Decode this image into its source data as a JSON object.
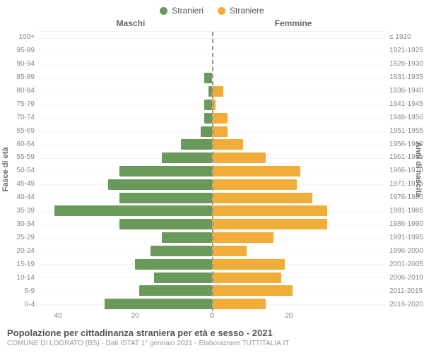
{
  "legend": {
    "male": {
      "label": "Stranieri",
      "color": "#6a9a5b"
    },
    "female": {
      "label": "Straniere",
      "color": "#f0ad3a"
    }
  },
  "headers": {
    "left": "Maschi",
    "right": "Femmine"
  },
  "axis_labels": {
    "left": "Fasce di età",
    "right": "Anni di nascita"
  },
  "colors": {
    "male_bar": "#6a9a5b",
    "female_bar": "#f0ad3a",
    "grid": "#f5f5f5",
    "center_line": "#999999",
    "tick_text": "#888888",
    "title_text": "#555555",
    "subtitle_text": "#999999",
    "background": "#ffffff"
  },
  "x_axis": {
    "max": 45,
    "ticks_left": [
      40,
      20,
      0
    ],
    "ticks_right": [
      0,
      20
    ]
  },
  "age_groups": [
    {
      "age": "100+",
      "birth": "≤ 1920",
      "m": 0,
      "f": 0
    },
    {
      "age": "95-99",
      "birth": "1921-1925",
      "m": 0,
      "f": 0
    },
    {
      "age": "90-94",
      "birth": "1926-1930",
      "m": 0,
      "f": 0
    },
    {
      "age": "85-89",
      "birth": "1931-1935",
      "m": 2,
      "f": 0
    },
    {
      "age": "80-84",
      "birth": "1936-1940",
      "m": 1,
      "f": 3
    },
    {
      "age": "75-79",
      "birth": "1941-1945",
      "m": 2,
      "f": 1
    },
    {
      "age": "70-74",
      "birth": "1946-1950",
      "m": 2,
      "f": 4
    },
    {
      "age": "65-69",
      "birth": "1951-1955",
      "m": 3,
      "f": 4
    },
    {
      "age": "60-64",
      "birth": "1956-1960",
      "m": 8,
      "f": 8
    },
    {
      "age": "55-59",
      "birth": "1961-1965",
      "m": 13,
      "f": 14
    },
    {
      "age": "50-54",
      "birth": "1966-1970",
      "m": 24,
      "f": 23
    },
    {
      "age": "45-49",
      "birth": "1971-1975",
      "m": 27,
      "f": 22
    },
    {
      "age": "40-44",
      "birth": "1976-1980",
      "m": 24,
      "f": 26
    },
    {
      "age": "35-39",
      "birth": "1981-1985",
      "m": 41,
      "f": 30
    },
    {
      "age": "30-34",
      "birth": "1986-1990",
      "m": 24,
      "f": 30
    },
    {
      "age": "25-29",
      "birth": "1991-1995",
      "m": 13,
      "f": 16
    },
    {
      "age": "20-24",
      "birth": "1996-2000",
      "m": 16,
      "f": 9
    },
    {
      "age": "15-19",
      "birth": "2001-2005",
      "m": 20,
      "f": 19
    },
    {
      "age": "10-14",
      "birth": "2006-2010",
      "m": 15,
      "f": 18
    },
    {
      "age": "5-9",
      "birth": "2011-2015",
      "m": 19,
      "f": 21
    },
    {
      "age": "0-4",
      "birth": "2016-2020",
      "m": 28,
      "f": 14
    }
  ],
  "footer": {
    "title": "Popolazione per cittadinanza straniera per età e sesso - 2021",
    "subtitle": "COMUNE DI LOGRATO (BS) - Dati ISTAT 1° gennaio 2021 - Elaborazione TUTTITALIA.IT"
  }
}
